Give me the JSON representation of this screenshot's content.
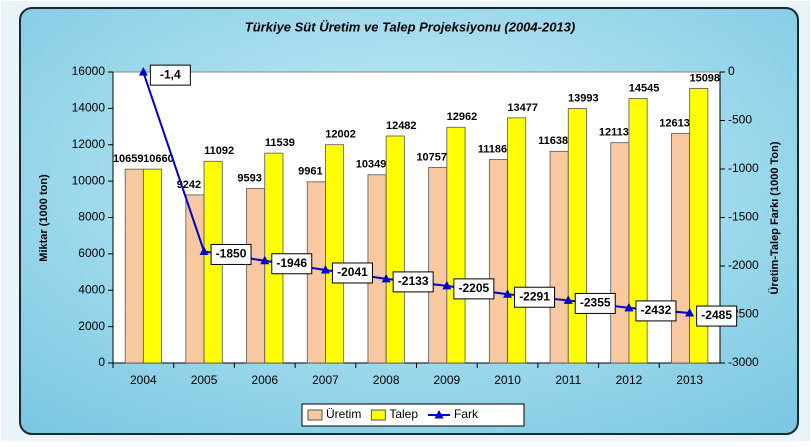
{
  "chart_data": {
    "type": "bar-line",
    "title": "Türkiye Süt Üretim ve Talep Projeksiyonu (2004-2013)",
    "ylabel": "Miktar (1000 ton)",
    "y2label": "Üretim-Talep Farkı (1000 Ton)",
    "categories": [
      "2004",
      "2005",
      "2006",
      "2007",
      "2008",
      "2009",
      "2010",
      "2011",
      "2012",
      "2013"
    ],
    "series": [
      {
        "name": "Üretim",
        "type": "bar",
        "color": "#f8c8a0",
        "values": [
          10659,
          9242,
          9593,
          9961,
          10349,
          10757,
          11186,
          11638,
          12113,
          12613
        ]
      },
      {
        "name": "Talep",
        "type": "bar",
        "color": "#ffff00",
        "values": [
          10660,
          11092,
          11539,
          12002,
          12482,
          12962,
          13477,
          13993,
          14545,
          15098
        ]
      },
      {
        "name": "Fark",
        "type": "line",
        "axis": "y2",
        "color": "#0000cc",
        "values": [
          -1.4,
          -1850,
          -1946,
          -2041,
          -2133,
          -2205,
          -2291,
          -2355,
          -2432,
          -2485
        ],
        "value_labels": [
          "-1,4",
          "-1850",
          "-1946",
          "-2041",
          "-2133",
          "-2205",
          "-2291",
          "-2355",
          "-2432",
          "-2485"
        ]
      }
    ],
    "ylim": [
      0,
      16000
    ],
    "yticks": [
      0,
      2000,
      4000,
      6000,
      8000,
      10000,
      12000,
      14000,
      16000
    ],
    "y2lim": [
      -3000,
      0
    ],
    "y2ticks": [
      -3000,
      -2500,
      -2000,
      -1500,
      -1000,
      -500,
      0
    ],
    "legend": "bottom"
  }
}
